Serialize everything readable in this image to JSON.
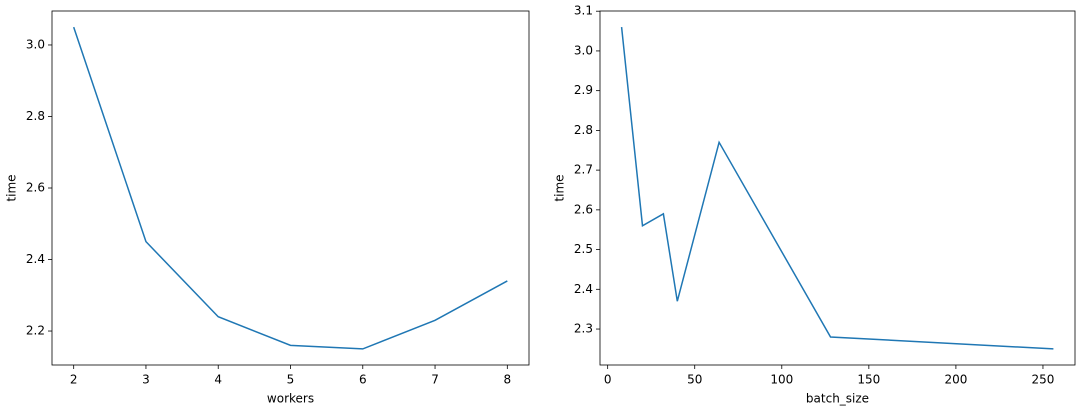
{
  "chart_data": [
    {
      "type": "line",
      "x_label": "workers",
      "y_label": "time",
      "x": [
        2,
        3,
        4,
        5,
        6,
        7,
        8
      ],
      "values": [
        3.05,
        2.45,
        2.24,
        2.16,
        2.15,
        2.23,
        2.34
      ],
      "color": "#1f77b4",
      "xlim": [
        1.7,
        8.3
      ],
      "xticks": [
        2,
        3,
        4,
        5,
        6,
        7,
        8
      ],
      "ylim": [
        2.105,
        3.095
      ],
      "yticks": [
        2.2,
        2.4,
        2.6,
        2.8,
        {
          "value": 3,
          "label": "3.0"
        }
      ]
    },
    {
      "type": "line",
      "x_label": "batch_size",
      "y_label": "time",
      "x": [
        8,
        20,
        32,
        40,
        64,
        128,
        256
      ],
      "values": [
        3.06,
        2.56,
        2.59,
        2.37,
        2.77,
        2.28,
        2.25
      ],
      "color": "#1f77b4",
      "xlim": [
        -4.4,
        268.4
      ],
      "xticks": [
        0,
        50,
        100,
        150,
        200,
        250
      ],
      "ylim": [
        2.2095,
        3.1005
      ],
      "yticks": [
        2.3,
        2.4,
        2.5,
        2.6,
        2.7,
        2.8,
        2.9,
        {
          "value": 3,
          "label": "3.0"
        },
        3.1
      ]
    }
  ]
}
